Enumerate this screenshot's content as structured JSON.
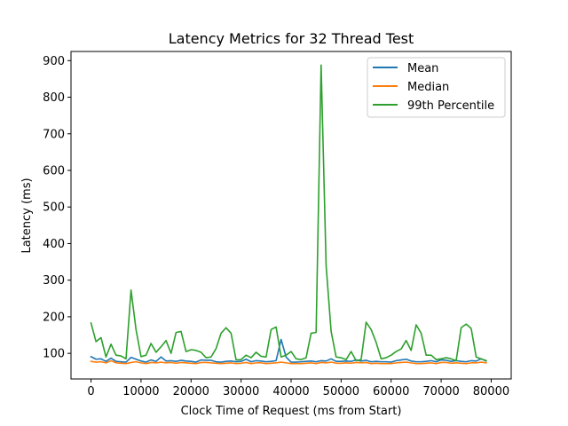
{
  "chart_data": {
    "type": "line",
    "title": "Latency Metrics for 32 Thread Test",
    "xlabel": "Clock Time of Request (ms from Start)",
    "ylabel": "Latency (ms)",
    "xlim": [
      -4000,
      84000
    ],
    "ylim": [
      30,
      925
    ],
    "xticks": [
      0,
      10000,
      20000,
      30000,
      40000,
      50000,
      60000,
      70000,
      80000
    ],
    "yticks": [
      100,
      200,
      300,
      400,
      500,
      600,
      700,
      800,
      900
    ],
    "grid": false,
    "legend_position": "top-right",
    "x": [
      0,
      1000,
      2000,
      3000,
      4000,
      5000,
      6000,
      7000,
      8000,
      9000,
      10000,
      11000,
      12000,
      13000,
      14000,
      15000,
      16000,
      17000,
      18000,
      19000,
      20000,
      21000,
      22000,
      23000,
      24000,
      25000,
      26000,
      27000,
      28000,
      29000,
      30000,
      31000,
      32000,
      33000,
      34000,
      35000,
      36000,
      37000,
      38000,
      39000,
      40000,
      41000,
      42000,
      43000,
      44000,
      45000,
      46000,
      47000,
      48000,
      49000,
      50000,
      51000,
      52000,
      53000,
      54000,
      55000,
      56000,
      57000,
      58000,
      59000,
      60000,
      61000,
      62000,
      63000,
      64000,
      65000,
      66000,
      67000,
      68000,
      69000,
      70000,
      71000,
      72000,
      73000,
      74000,
      75000,
      76000,
      77000,
      78000,
      79000
    ],
    "series": [
      {
        "name": "Mean",
        "color": "#1f77b4",
        "values": [
          91,
          84,
          85,
          78,
          87,
          78,
          77,
          76,
          89,
          84,
          79,
          76,
          82,
          78,
          90,
          79,
          80,
          78,
          81,
          79,
          78,
          76,
          82,
          81,
          81,
          77,
          76,
          78,
          79,
          77,
          78,
          84,
          77,
          80,
          79,
          77,
          78,
          80,
          138,
          90,
          76,
          76,
          77,
          78,
          79,
          77,
          80,
          79,
          85,
          78,
          78,
          79,
          78,
          82,
          79,
          81,
          77,
          78,
          77,
          77,
          76,
          80,
          82,
          84,
          79,
          77,
          77,
          78,
          80,
          77,
          82,
          81,
          78,
          80,
          78,
          77,
          80,
          79,
          85,
          79
        ]
      },
      {
        "name": "Median",
        "color": "#ff7f0e",
        "values": [
          78,
          76,
          77,
          74,
          80,
          74,
          73,
          72,
          75,
          77,
          74,
          72,
          75,
          74,
          76,
          74,
          75,
          73,
          75,
          74,
          73,
          72,
          75,
          75,
          74,
          73,
          72,
          73,
          74,
          72,
          73,
          75,
          72,
          74,
          74,
          72,
          73,
          74,
          76,
          74,
          72,
          72,
          72,
          73,
          74,
          72,
          75,
          74,
          76,
          73,
          73,
          74,
          73,
          75,
          74,
          75,
          72,
          73,
          72,
          72,
          72,
          74,
          75,
          76,
          74,
          72,
          72,
          73,
          74,
          72,
          75,
          75,
          73,
          74,
          73,
          72,
          74,
          74,
          76,
          74
        ]
      },
      {
        "name": "99th Percentile",
        "color": "#2ca02c",
        "values": [
          183,
          132,
          143,
          90,
          125,
          95,
          93,
          85,
          273,
          165,
          91,
          95,
          127,
          103,
          118,
          135,
          100,
          157,
          160,
          105,
          110,
          108,
          103,
          88,
          90,
          113,
          155,
          170,
          155,
          82,
          83,
          95,
          88,
          103,
          92,
          90,
          165,
          172,
          90,
          95,
          105,
          85,
          83,
          88,
          155,
          157,
          888,
          340,
          160,
          90,
          88,
          83,
          105,
          80,
          83,
          185,
          165,
          130,
          85,
          88,
          95,
          105,
          112,
          135,
          108,
          178,
          155,
          95,
          95,
          83,
          85,
          88,
          85,
          80,
          170,
          180,
          168,
          90,
          85,
          80
        ]
      }
    ]
  }
}
